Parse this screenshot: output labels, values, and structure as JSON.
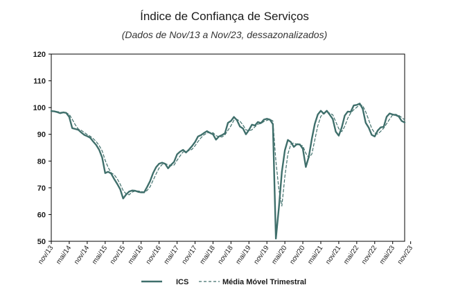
{
  "chart_data": {
    "type": "line",
    "title": "Índice de Confiança de Serviços",
    "subtitle": "(Dados de Nov/13 a Nov/23, dessazonalizados)",
    "xlabel": "",
    "ylabel": "",
    "ylim": [
      50,
      120
    ],
    "yticks": [
      50,
      60,
      70,
      80,
      90,
      100,
      110,
      120
    ],
    "grid": false,
    "legend_position": "bottom-center",
    "colors": {
      "series": "#3f6f6b",
      "frame": "#000000",
      "background": "#ffffff"
    },
    "tick_labels": [
      "nov/13",
      "mai/14",
      "nov/14",
      "mai/15",
      "nov/15",
      "mai/16",
      "nov/16",
      "mai/17",
      "nov/17",
      "mai/18",
      "nov/18",
      "mai/19",
      "nov/19",
      "mai/20",
      "nov/20",
      "mai/21",
      "nov/21",
      "mai/22",
      "nov/22",
      "mai/23",
      "nov/23"
    ],
    "series": [
      {
        "name": "ICS",
        "style": "solid",
        "values": [
          98.7,
          98.6,
          98.3,
          97.9,
          98.2,
          98.0,
          96.5,
          92.3,
          92.0,
          91.7,
          90.7,
          89.8,
          89.3,
          88.7,
          87.3,
          86.0,
          84.2,
          81.3,
          75.5,
          76.0,
          75.3,
          73.3,
          71.5,
          69.5,
          66.0,
          67.5,
          68.6,
          69.0,
          68.9,
          68.5,
          68.3,
          68.3,
          70.3,
          72.5,
          75.5,
          77.7,
          79.0,
          79.4,
          79.0,
          77.3,
          78.6,
          79.7,
          82.5,
          83.5,
          84.2,
          83.2,
          84.3,
          85.6,
          87.1,
          89.2,
          89.7,
          90.5,
          91.2,
          90.5,
          90.0,
          88.0,
          89.2,
          89.7,
          90.4,
          94.3,
          95.0,
          96.5,
          95.3,
          92.9,
          92.2,
          90.0,
          91.6,
          93.6,
          93.3,
          94.6,
          94.2,
          95.5,
          95.8,
          95.5,
          93.8,
          51.0,
          62.5,
          76.0,
          84.0,
          87.9,
          87.1,
          85.3,
          86.3,
          86.2,
          84.6,
          77.8,
          81.6,
          88.3,
          93.9,
          97.4,
          98.8,
          97.7,
          98.8,
          97.3,
          95.7,
          91.0,
          89.5,
          92.6,
          97.0,
          98.5,
          98.4,
          100.8,
          101.0,
          101.5,
          99.5,
          94.3,
          92.5,
          89.8,
          89.2,
          91.4,
          92.6,
          92.8,
          96.6,
          97.8,
          97.4,
          97.2,
          96.7,
          95.0,
          94.4
        ]
      },
      {
        "name": "Média Móvel Trimestral",
        "style": "dashed",
        "values": [
          98.8,
          98.6,
          98.5,
          98.3,
          98.1,
          98.0,
          97.5,
          95.6,
          93.6,
          92.0,
          91.5,
          90.7,
          89.9,
          89.3,
          88.4,
          87.3,
          85.8,
          83.8,
          80.3,
          77.6,
          75.6,
          74.9,
          73.4,
          71.4,
          69.0,
          67.7,
          67.4,
          68.4,
          68.8,
          68.8,
          68.6,
          68.4,
          69.0,
          70.4,
          72.8,
          75.2,
          77.4,
          78.7,
          79.1,
          78.6,
          78.3,
          78.5,
          80.3,
          81.9,
          83.4,
          83.6,
          83.9,
          84.4,
          85.7,
          87.3,
          88.7,
          89.8,
          90.5,
          90.7,
          90.6,
          89.5,
          89.1,
          89.0,
          89.8,
          91.5,
          93.2,
          95.3,
          95.6,
          94.9,
          93.5,
          91.7,
          91.3,
          91.7,
          92.8,
          93.8,
          94.0,
          94.8,
          95.2,
          95.6,
          95.0,
          80.1,
          69.4,
          63.2,
          74.2,
          82.6,
          86.3,
          86.8,
          86.2,
          85.9,
          85.7,
          82.9,
          81.3,
          82.6,
          87.9,
          93.2,
          96.7,
          98.0,
          98.4,
          97.9,
          97.3,
          94.7,
          92.1,
          91.0,
          93.0,
          96.0,
          98.0,
          99.2,
          100.1,
          101.1,
          100.7,
          98.4,
          95.4,
          92.2,
          90.5,
          90.1,
          91.1,
          92.3,
          94.0,
          95.7,
          97.3,
          97.5,
          97.1,
          96.3,
          95.4
        ]
      }
    ]
  }
}
